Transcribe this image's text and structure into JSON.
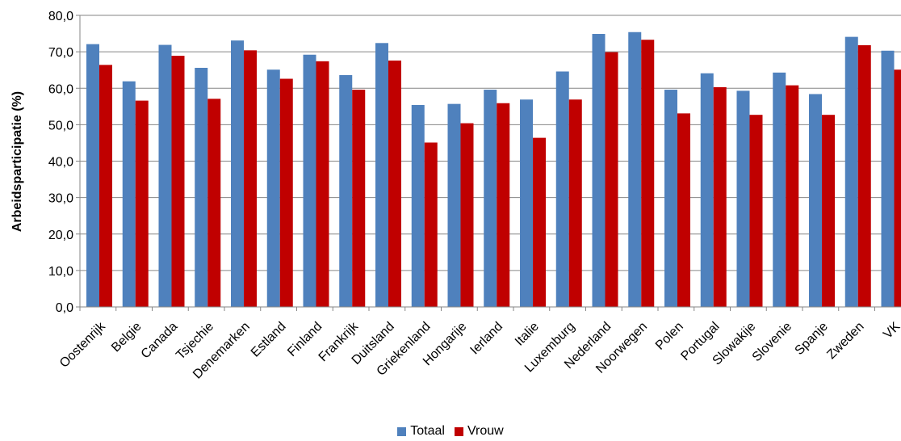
{
  "chart_data": {
    "type": "bar",
    "ylabel": "Arbeidsparticipatie (%)",
    "ylim": [
      0,
      80
    ],
    "yticks": [
      "0,0",
      "10,0",
      "20,0",
      "30,0",
      "40,0",
      "50,0",
      "60,0",
      "70,0",
      "80,0"
    ],
    "grid": true,
    "legend_position": "bottom",
    "categories": [
      "Oostenrijk",
      "Belgie",
      "Canada",
      "Tsjechie",
      "Denemarken",
      "Estland",
      "Finland",
      "Frankrijk",
      "Duitsland",
      "Griekenland",
      "Hongarije",
      "Ierland",
      "Italie",
      "Luxemburg",
      "Nederland",
      "Noorwegen",
      "Polen",
      "Portugal",
      "Slowakije",
      "Slovenie",
      "Spanje",
      "Zweden",
      "VK"
    ],
    "series": [
      {
        "name": "Totaal",
        "color": "#4F81BD",
        "values": [
          72.1,
          61.9,
          71.9,
          65.6,
          73.1,
          65.1,
          69.2,
          63.6,
          72.4,
          55.4,
          55.7,
          59.6,
          56.9,
          64.6,
          74.9,
          75.4,
          59.6,
          64.1,
          59.3,
          64.3,
          58.4,
          74.1,
          70.3
        ]
      },
      {
        "name": "Vrouw",
        "color": "#C00000",
        "values": [
          66.4,
          56.6,
          68.9,
          57.1,
          70.4,
          62.6,
          67.4,
          59.6,
          67.6,
          45.1,
          50.4,
          55.9,
          46.4,
          56.9,
          69.9,
          73.3,
          53.1,
          60.3,
          52.7,
          60.8,
          52.7,
          71.8,
          65.1
        ]
      }
    ]
  }
}
